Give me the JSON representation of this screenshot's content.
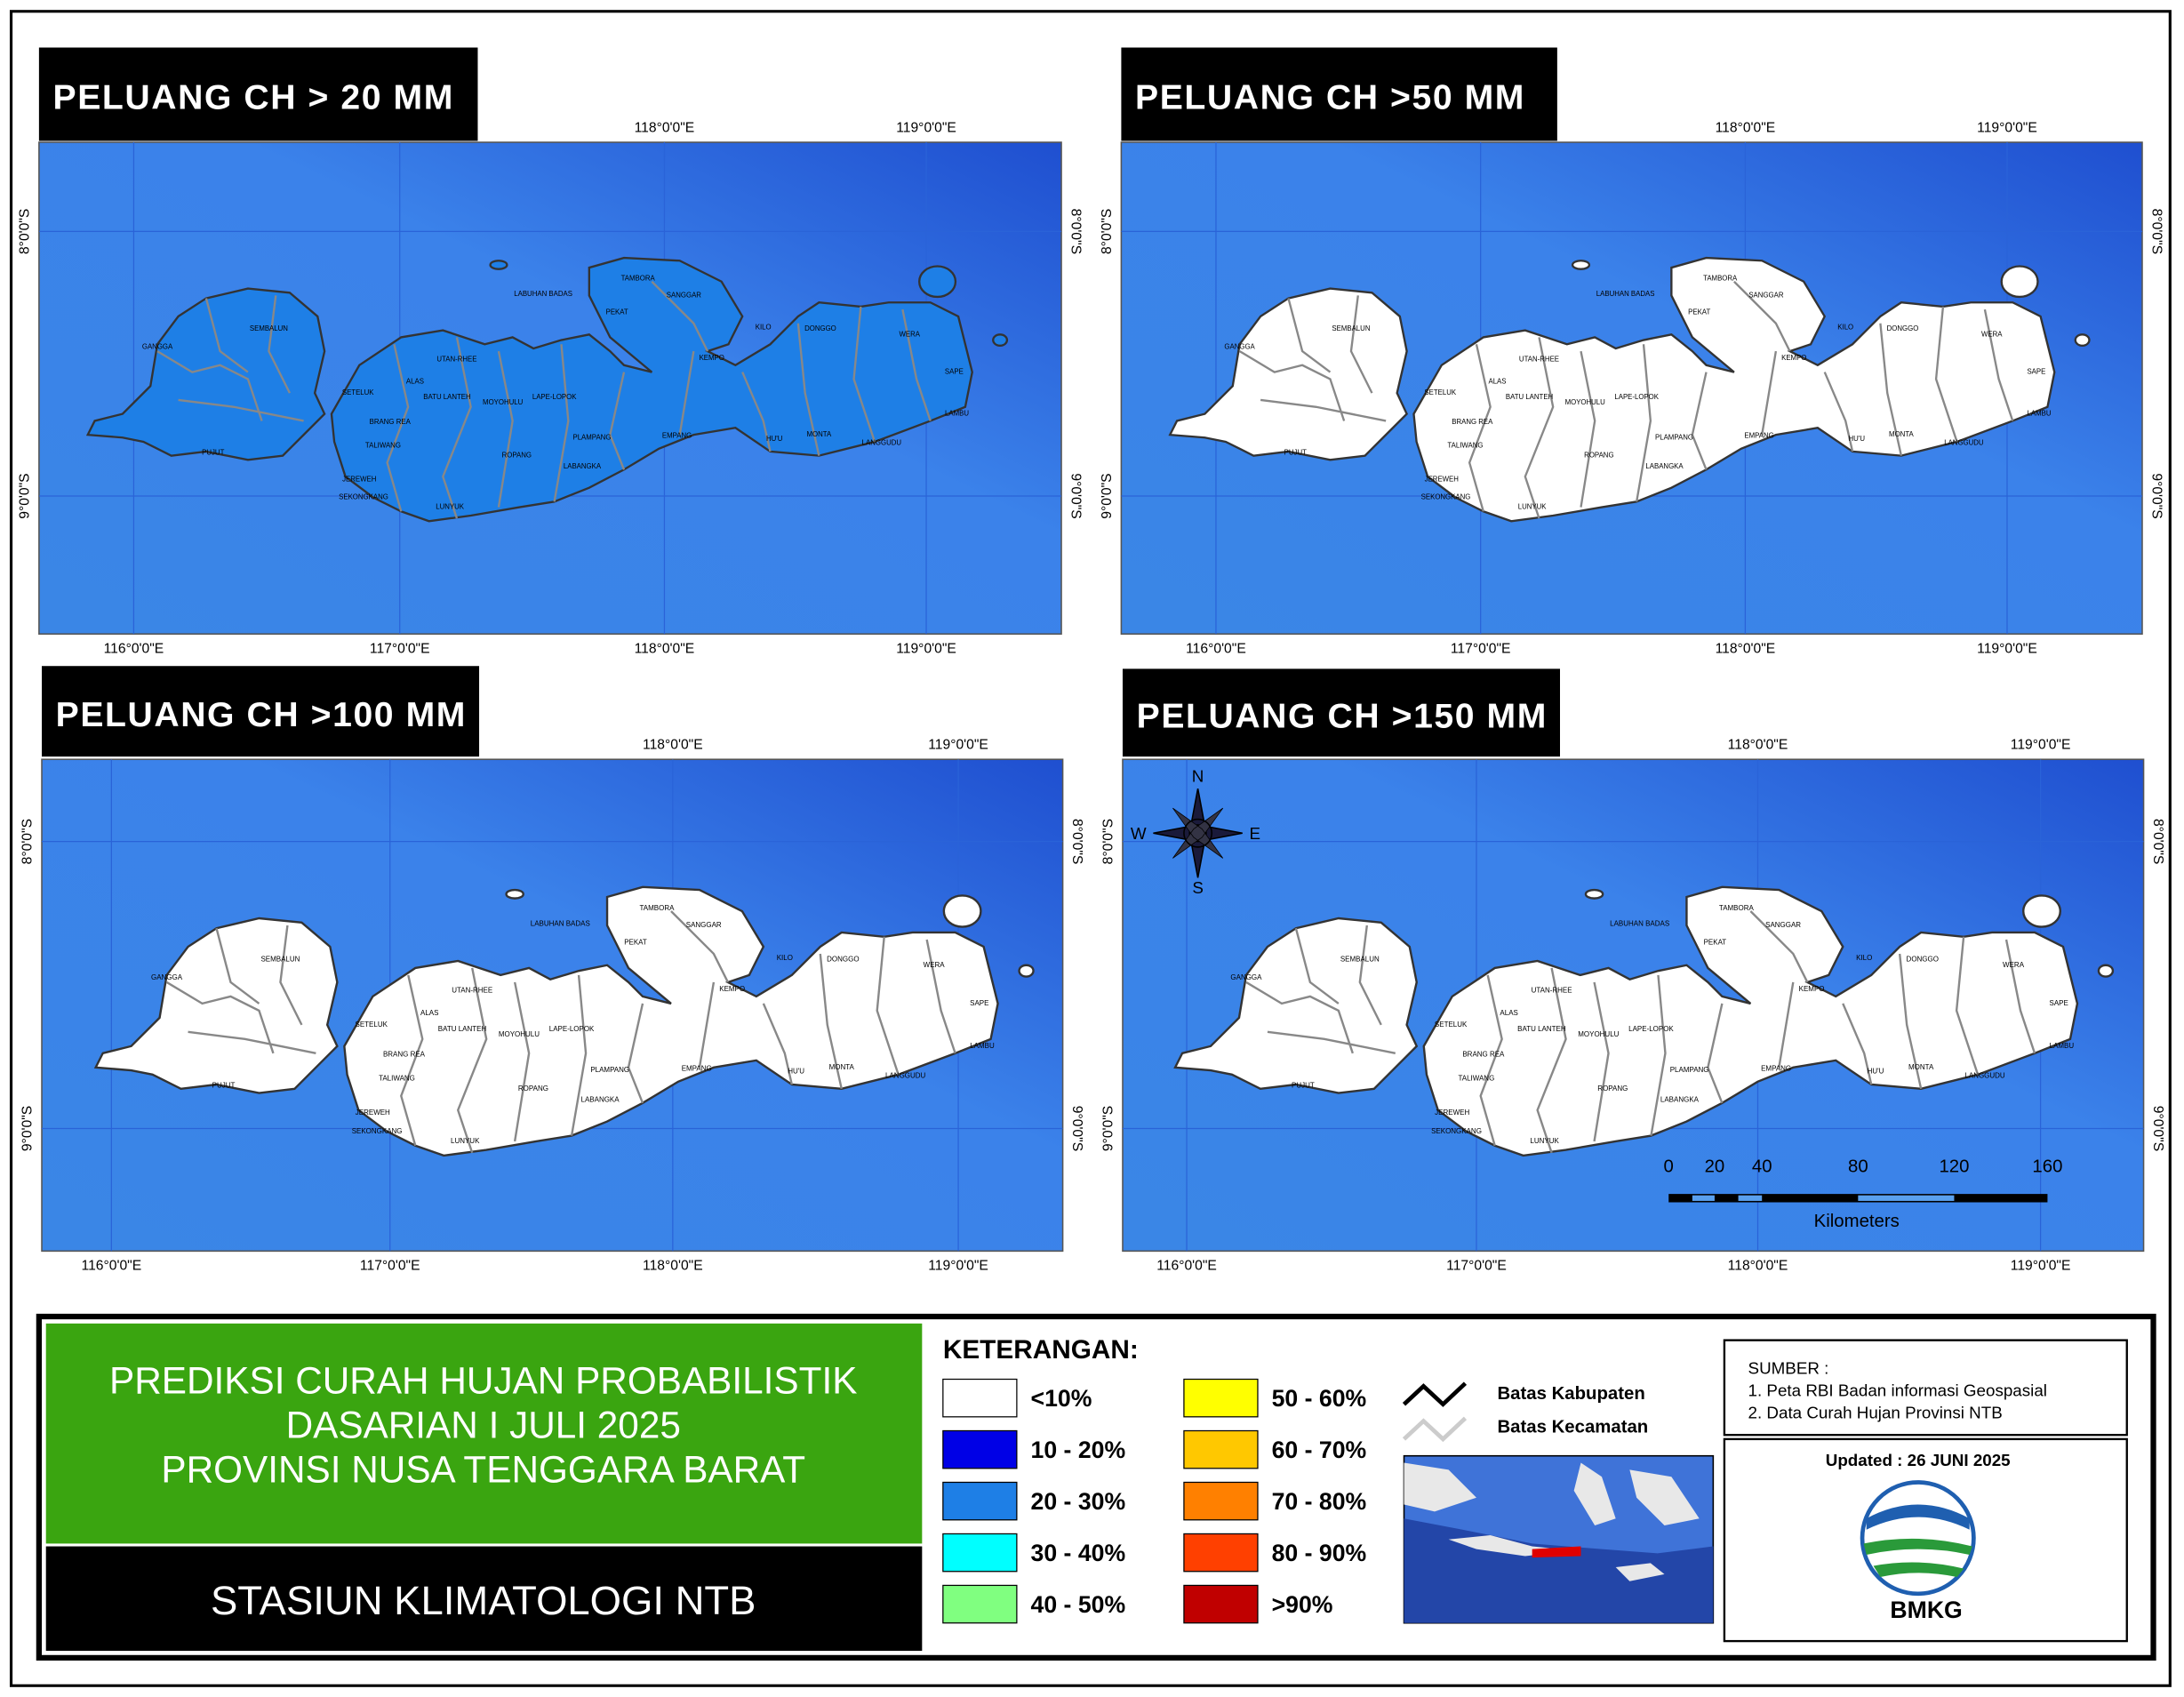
{
  "panels": [
    {
      "title": "PELUANG CH > 20 MM",
      "lon_labels": [
        "116°0'0\"E",
        "117°0'0\"E",
        "118°0'0\"E",
        "119°0'0\"E"
      ],
      "lat_labels": [
        "8°0'0\"S",
        "9°0'0\"S"
      ]
    },
    {
      "title": "PELUANG CH >50 MM",
      "lon_labels": [
        "116°0'0\"E",
        "117°0'0\"E",
        "118°0'0\"E",
        "119°0'0\"E"
      ],
      "lat_labels": [
        "8°0'0\"S",
        "9°0'0\"S"
      ]
    },
    {
      "title": "PELUANG CH >100 MM",
      "lon_labels": [
        "116°0'0\"E",
        "117°0'0\"E",
        "118°0'0\"E",
        "119°0'0\"E"
      ],
      "lat_labels": [
        "8°0'0\"S",
        "9°0'0\"S"
      ]
    },
    {
      "title": "PELUANG CH >150 MM",
      "lon_labels": [
        "116°0'0\"E",
        "117°0'0\"E",
        "118°0'0\"E",
        "119°0'0\"E"
      ],
      "lat_labels": [
        "8°0'0\"S",
        "9°0'0\"S"
      ]
    }
  ],
  "district_labels": [
    "TAMBORA",
    "PEKAT",
    "SANGGAR",
    "KEMPO",
    "KILO",
    "DONGGO",
    "WERA",
    "SAPE",
    "LAMBU",
    "MONTA",
    "LANGGUDU",
    "HU'U",
    "EMPANG",
    "PLAMPANG",
    "LABANGKA",
    "ROPANG",
    "LUNYUK",
    "JEREWEH",
    "SEKONGKANG",
    "TALIWANG",
    "BRANG REA",
    "SETELUK",
    "ALAS",
    "UTAN-RHEE",
    "MOYOHULU",
    "BATU LANTEH",
    "LAPE-LOPOK",
    "LABUHAN BADAS",
    "SEMBALUN",
    "GANGGA",
    "PUJUT"
  ],
  "compass": {
    "n": "N",
    "e": "E",
    "s": "S",
    "w": "W"
  },
  "scale_bar": {
    "ticks": [
      "0",
      "20",
      "40",
      "80",
      "120",
      "160"
    ],
    "unit": "Kilometers"
  },
  "footer": {
    "title_lines": [
      "PREDIKSI CURAH HUJAN PROBABILISTIK",
      "DASARIAN  I JULI 2025",
      "PROVINSI NUSA TENGGARA BARAT"
    ],
    "station": "STASIUN KLIMATOLOGI NTB",
    "legend_title": "KETERANGAN:",
    "legend": [
      {
        "label": "<10%",
        "color": "#ffffff"
      },
      {
        "label": "10 - 20%",
        "color": "#0000e6"
      },
      {
        "label": "20 - 30%",
        "color": "#1e7fe6"
      },
      {
        "label": "30 - 40%",
        "color": "#00ffff"
      },
      {
        "label": "40 - 50%",
        "color": "#80ff80"
      },
      {
        "label": "50 - 60%",
        "color": "#ffff00"
      },
      {
        "label": "60 - 70%",
        "color": "#ffc800"
      },
      {
        "label": "70 - 80%",
        "color": "#ff8000"
      },
      {
        "label": "80 - 90%",
        "color": "#ff4000"
      },
      {
        "label": ">90%",
        "color": "#c00000"
      }
    ],
    "boundaries": [
      "Batas Kabupaten",
      "Batas Kecamatan"
    ],
    "sources_title": "SUMBER :",
    "sources": [
      "1. Peta RBI Badan informasi Geospasial",
      "2. Data Curah Hujan Provinsi NTB"
    ],
    "updated": "Updated : 26 JUNI 2025",
    "logo_text": "BMKG"
  }
}
